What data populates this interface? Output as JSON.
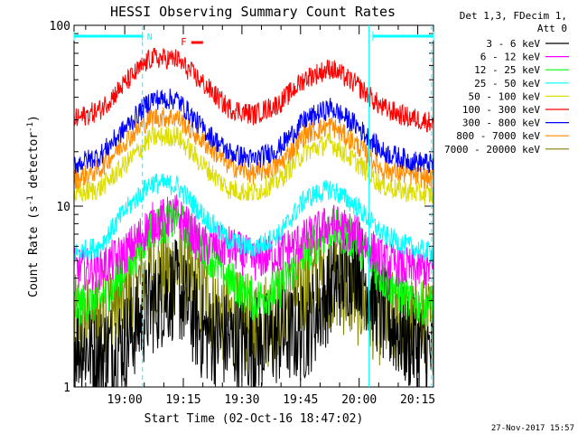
{
  "chart_data": {
    "type": "line",
    "title": "HESSI Observing Summary Count Rates",
    "xlabel": "Start Time (02-Oct-16 18:47:02)",
    "ylabel_parts": [
      "Count Rate (s",
      "-1",
      " detector",
      "-1",
      ")"
    ],
    "y_scale": "log",
    "ylim": [
      1,
      100
    ],
    "y_ticks": [
      {
        "value": 1,
        "label": "1"
      },
      {
        "value": 10,
        "label": "10"
      },
      {
        "value": 100,
        "label": "100"
      }
    ],
    "xlim_minutes_after_start": [
      0,
      92
    ],
    "x_ticks": [
      {
        "label": "19:00",
        "minutes_after_start": 12.97
      },
      {
        "label": "19:15",
        "minutes_after_start": 27.97
      },
      {
        "label": "19:30",
        "minutes_after_start": 42.97
      },
      {
        "label": "19:45",
        "minutes_after_start": 57.97
      },
      {
        "label": "20:00",
        "minutes_after_start": 72.97
      },
      {
        "label": "20:15",
        "minutes_after_start": 87.97
      }
    ],
    "legend_header": [
      "Det 1,3, FDecim 1,",
      "Att 0"
    ],
    "legend_position": "right, outside plot",
    "series": [
      {
        "name": "3 - 6 keV",
        "color": "#000000",
        "values": [
          1.8,
          1.5,
          1.8,
          2.8,
          3.5,
          2.0,
          1.8,
          1.7,
          1.9,
          2.0,
          3.5,
          5.0,
          2.5,
          1.8,
          1.5
        ]
      },
      {
        "name": "6 - 12 keV",
        "color": "#ff00ff",
        "values": [
          4.5,
          4.5,
          5.5,
          8.0,
          9.0,
          6.0,
          6.0,
          5.0,
          5.5,
          6.5,
          8.0,
          7.0,
          5.0,
          4.5,
          4.5
        ]
      },
      {
        "name": "12 - 25 keV",
        "color": "#00ff00",
        "values": [
          2.8,
          3.0,
          4.5,
          7.5,
          8.5,
          6.0,
          4.0,
          3.0,
          3.5,
          5.5,
          7.5,
          6.5,
          4.0,
          3.0,
          2.8
        ]
      },
      {
        "name": "25 - 50 keV",
        "color": "#00ffff",
        "values": [
          5.5,
          6.0,
          9.5,
          13.5,
          13.0,
          9.0,
          6.5,
          5.8,
          7.0,
          11.0,
          12.5,
          10.0,
          7.0,
          6.0,
          5.5
        ]
      },
      {
        "name": "50 - 100 keV",
        "color": "#dddd00",
        "values": [
          11.5,
          12.5,
          17.0,
          24.0,
          24.5,
          17.0,
          12.5,
          11.8,
          14.0,
          20.0,
          22.5,
          17.5,
          13.0,
          12.0,
          11.5
        ]
      },
      {
        "name": "100 - 300 keV",
        "color": "#ff0000",
        "values": [
          30,
          34,
          48,
          66,
          65,
          48,
          35,
          32,
          37,
          51,
          58,
          47,
          35,
          31,
          29
        ]
      },
      {
        "name": "300 - 800 keV",
        "color": "#0000ff",
        "values": [
          17,
          19,
          27,
          39,
          39,
          27,
          20,
          18,
          21,
          30,
          35,
          28,
          20,
          18,
          17
        ]
      },
      {
        "name": "800 - 7000 keV",
        "color": "#ff8c00",
        "values": [
          14,
          16,
          23,
          31,
          31,
          23,
          17,
          15,
          17,
          25,
          28,
          22,
          16,
          15,
          14
        ]
      },
      {
        "name": "7000 - 20000 keV",
        "color": "#808000",
        "values": [
          2.2,
          2.4,
          3.2,
          4.2,
          4.5,
          3.2,
          2.4,
          2.2,
          2.6,
          3.6,
          4.0,
          3.2,
          2.4,
          2.2,
          2.2
        ]
      }
    ],
    "annotations": {
      "night_markers": [
        {
          "from_minutes": 0,
          "to_minutes": 17.5,
          "label": "N"
        },
        {
          "from_minutes": 76.5,
          "to_minutes": 92,
          "label": ""
        }
      ],
      "saa_lines_minutes": [
        17.5,
        75.5,
        91.5
      ],
      "flare_marker": {
        "label": "F",
        "from_minutes": 30,
        "to_minutes": 33
      }
    },
    "footer_date": "27-Nov-2017 15:57"
  }
}
